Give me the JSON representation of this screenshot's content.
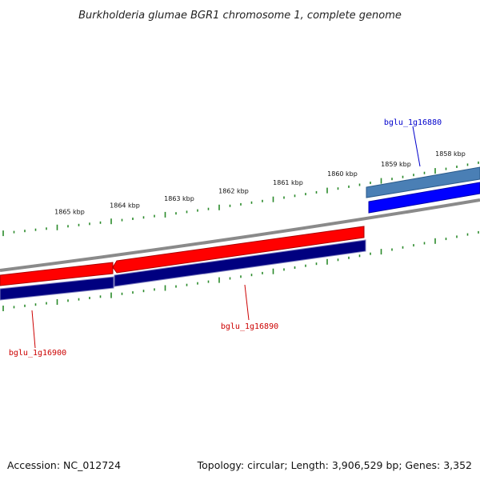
{
  "title": "Burkholderia glumae BGR1 chromosome 1, complete genome",
  "footer": {
    "accession": "Accession: NC_012724",
    "summary": "Topology: circular; Length: 3,906,529 bp; Genes: 3,352"
  },
  "colors": {
    "backbone": "#8a8a8a",
    "tick": "#2a8a2a",
    "forward_cds": "#ff0000",
    "reverse_cds": "#000080",
    "highlight_light": "#4a7fb5",
    "highlight_bright": "#0000ff",
    "label_red": "#cc0000",
    "label_blue": "#0000cc"
  },
  "scale_labels": [
    {
      "kbp": 1858,
      "text": "1858 kbp"
    },
    {
      "kbp": 1859,
      "text": "1859 kbp"
    },
    {
      "kbp": 1860,
      "text": "1860 kbp"
    },
    {
      "kbp": 1861,
      "text": "1861 kbp"
    },
    {
      "kbp": 1862,
      "text": "1862 kbp"
    },
    {
      "kbp": 1863,
      "text": "1863 kbp"
    },
    {
      "kbp": 1864,
      "text": "1864 kbp"
    },
    {
      "kbp": 1865,
      "text": "1865 kbp"
    }
  ],
  "genes": [
    {
      "id": "bglu_1g16880",
      "label": "bglu_1g16880",
      "color_key": "label_blue"
    },
    {
      "id": "bglu_1g16890",
      "label": "bglu_1g16890",
      "color_key": "label_red"
    },
    {
      "id": "bglu_1g16900",
      "label": "bglu_1g16900",
      "color_key": "label_red"
    }
  ]
}
